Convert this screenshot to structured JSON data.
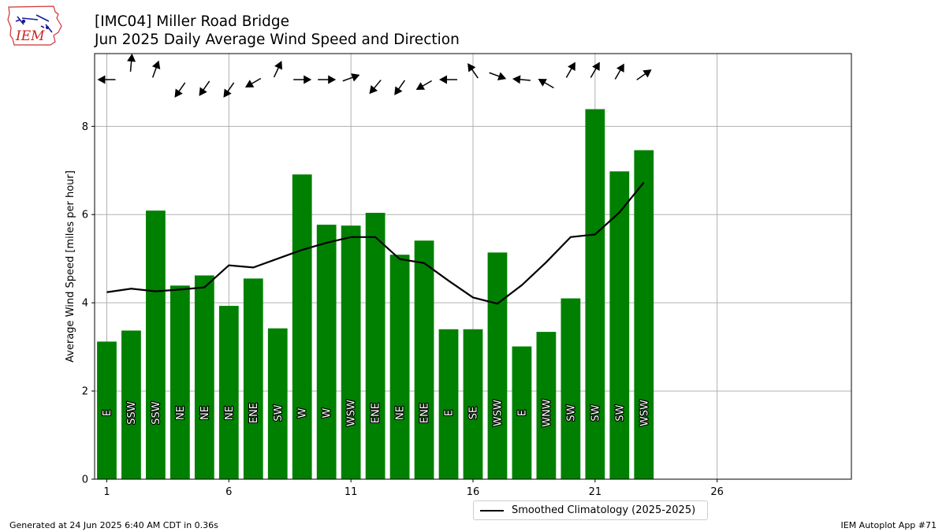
{
  "header": {
    "title_line1": "[IMC04] Miller Road Bridge",
    "title_line2": "Jun 2025 Daily Average Wind Speed and Direction"
  },
  "logo": {
    "text": "IEM"
  },
  "footer": {
    "generated": "Generated at 24 Jun 2025 6:40 AM CDT in 0.36s",
    "app": "IEM Autoplot App #71"
  },
  "colors": {
    "bar": "#008000",
    "climatology": "#000000",
    "grid": "#b0b0b0"
  },
  "chart_data": {
    "type": "bar",
    "title": "[IMC04] Miller Road Bridge\nJun 2025 Daily Average Wind Speed and Direction",
    "ylabel": "Average Wind Speed [miles per hour]",
    "xlabel": "",
    "xlim": [
      0.5,
      31.5
    ],
    "ylim": [
      0,
      9.65
    ],
    "xticks": [
      1,
      6,
      11,
      16,
      21,
      26
    ],
    "yticks": [
      0,
      2,
      4,
      6,
      8
    ],
    "grid": true,
    "legend_placement": "below-center",
    "days": [
      1,
      2,
      3,
      4,
      5,
      6,
      7,
      8,
      9,
      10,
      11,
      12,
      13,
      14,
      15,
      16,
      17,
      18,
      19,
      20,
      21,
      22,
      23
    ],
    "speeds": [
      3.12,
      3.37,
      6.09,
      4.39,
      4.62,
      3.93,
      4.55,
      3.42,
      6.91,
      5.77,
      5.75,
      6.04,
      5.09,
      5.41,
      3.4,
      3.4,
      5.14,
      3.01,
      3.34,
      4.1,
      8.39,
      6.98,
      7.46
    ],
    "directions": [
      "E",
      "SSW",
      "SSW",
      "NE",
      "NE",
      "NE",
      "ENE",
      "SW",
      "W",
      "W",
      "WSW",
      "ENE",
      "NE",
      "ENE",
      "E",
      "SE",
      "WSW",
      "E",
      "WNW",
      "SW",
      "SW",
      "SW",
      "WSW"
    ],
    "arrow_angles_deg": [
      270,
      5,
      20,
      215,
      215,
      215,
      240,
      25,
      90,
      90,
      70,
      220,
      215,
      240,
      270,
      325,
      110,
      275,
      300,
      30,
      30,
      30,
      55
    ],
    "climatology": {
      "name": "Smoothed Climatology (2025-2025)",
      "values": [
        4.24,
        4.32,
        4.26,
        4.3,
        4.35,
        4.85,
        4.8,
        5.0,
        5.2,
        5.36,
        5.49,
        5.49,
        4.99,
        4.9,
        4.5,
        4.12,
        3.98,
        4.4,
        4.92,
        5.49,
        5.55,
        6.05,
        6.73
      ]
    }
  }
}
